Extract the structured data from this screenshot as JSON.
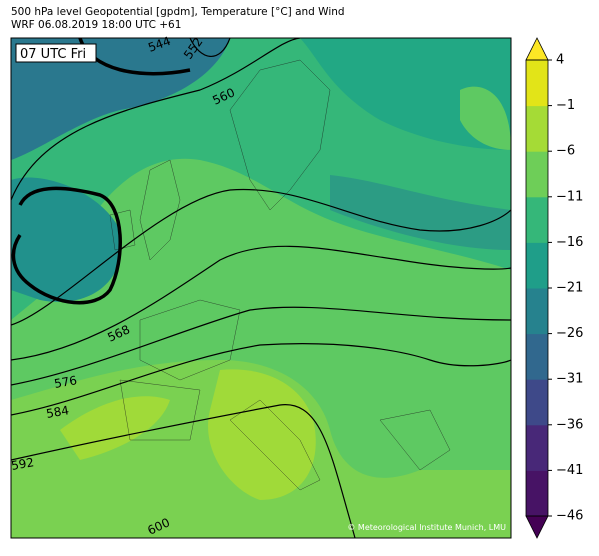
{
  "header": {
    "title": "500 hPa level Geopotential [gpdm], Temperature [°C] and Wind",
    "subtitle": "WRF 06.08.2019 18:00 UTC +61"
  },
  "time_label": "07 UTC Fri",
  "contour_labels": [
    544,
    552,
    560,
    568,
    576,
    584,
    592,
    600
  ],
  "copyright": "© Meteorological Institute Munich, LMU",
  "colorbar": {
    "lim": [
      -46,
      4
    ],
    "ticks": [
      {
        "value": 4,
        "label": "4"
      },
      {
        "value": -1,
        "label": "−1"
      },
      {
        "value": -6,
        "label": "−6"
      },
      {
        "value": -11,
        "label": "−11"
      },
      {
        "value": -16,
        "label": "−16"
      },
      {
        "value": -21,
        "label": "−21"
      },
      {
        "value": -26,
        "label": "−26"
      },
      {
        "value": -31,
        "label": "−31"
      },
      {
        "value": -36,
        "label": "−36"
      },
      {
        "value": -41,
        "label": "−41"
      },
      {
        "value": -46,
        "label": "−46"
      }
    ],
    "colors": [
      "#471365",
      "#482878",
      "#3e4989",
      "#31688e",
      "#26828e",
      "#1f9e89",
      "#35b779",
      "#6ece58",
      "#a5db36",
      "#e2e418"
    ],
    "extend_colors": [
      "#440154",
      "#fde725"
    ]
  }
}
